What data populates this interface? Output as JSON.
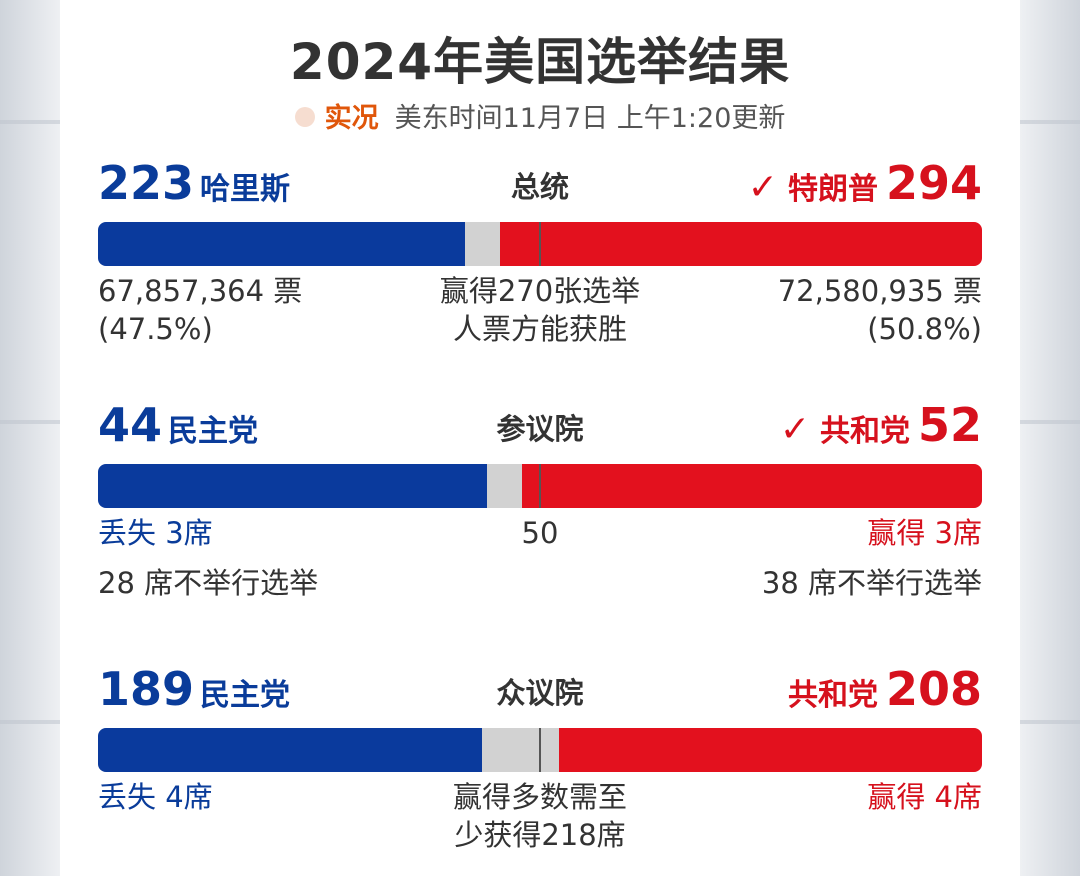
{
  "title": "2024年美国选举结果",
  "status": {
    "live_label": "实况",
    "updated": "美东时间11月7日 上午1:20更新"
  },
  "colors": {
    "dem": "#0a3a9d",
    "rep": "#e3111e",
    "undecided": "#d2d2d2",
    "live": "#e0560a"
  },
  "president": {
    "label": "总统",
    "dem": {
      "count": "223",
      "name": "哈里斯",
      "votes": "67,857,364 票",
      "pct": "(47.5%)"
    },
    "rep": {
      "count": "294",
      "name": "特朗普",
      "winner_mark": "✓",
      "votes": "72,580,935 票",
      "pct": "(50.8%)"
    },
    "center_note_1": "赢得270张选举",
    "center_note_2": "人票方能获胜",
    "bar": {
      "dem_share": 0.415,
      "undecided_share": 0.04,
      "rep_share": 0.545
    }
  },
  "senate": {
    "label": "参议院",
    "dem": {
      "count": "44",
      "name": "民主党",
      "change": "丢失 3席",
      "not_up": "28 席不举行选举"
    },
    "rep": {
      "count": "52",
      "name": "共和党",
      "winner_mark": "✓",
      "change": "赢得 3席",
      "not_up": "38 席不举行选举"
    },
    "majority_mark": "50",
    "bar": {
      "dem_share": 0.44,
      "undecided_share": 0.04,
      "rep_share": 0.52
    }
  },
  "house": {
    "label": "众议院",
    "dem": {
      "count": "189",
      "name": "民主党",
      "change": "丢失 4席"
    },
    "rep": {
      "count": "208",
      "name": "共和党",
      "change": "赢得 4席"
    },
    "center_note_1": "赢得多数需至",
    "center_note_2": "少获得218席",
    "bar": {
      "dem_share": 0.434,
      "undecided_share": 0.088,
      "rep_share": 0.478
    }
  }
}
